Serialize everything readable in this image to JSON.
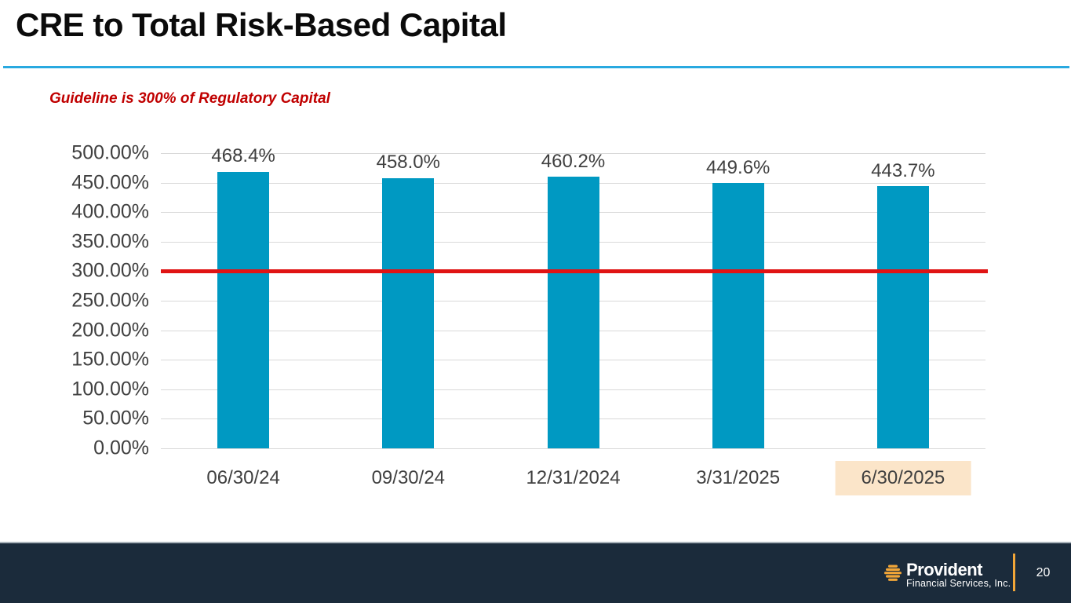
{
  "slide": {
    "title": "CRE to Total Risk-Based Capital",
    "guideline_note": "Guideline is 300% of Regulatory Capital"
  },
  "chart_data": {
    "type": "bar",
    "title": "CRE to Total Risk-Based Capital",
    "categories": [
      "06/30/24",
      "09/30/24",
      "12/31/2024",
      "3/31/2025",
      "6/30/2025"
    ],
    "values": [
      468.4,
      458.0,
      460.2,
      449.6,
      443.7
    ],
    "value_labels": [
      "468.4%",
      "458.0%",
      "460.2%",
      "449.6%",
      "443.7%"
    ],
    "ylim": [
      0,
      500
    ],
    "ytick_labels_top_down": [
      "500.00%",
      "450.00%",
      "400.00%",
      "350.00%",
      "300.00%",
      "250.00%",
      "200.00%",
      "150.00%",
      "100.00%",
      "50.00%",
      "0.00%"
    ],
    "guideline_value": 300,
    "guideline_label": "Guideline is 300% of Regulatory Capital",
    "highlighted_category_index": 4,
    "grid": true,
    "legend_position": "none",
    "bar_color": "#0099C2",
    "guideline_color": "#E01414",
    "highlight_color": "#FBE5C9"
  },
  "footer": {
    "logo_name": "Provident",
    "logo_subtitle": "Financial Services, Inc.",
    "page_number": "20",
    "background_color": "#1B2B3B",
    "accent_color": "#F2A638"
  },
  "colors": {
    "title_rule": "#29A9E0",
    "note_red": "#C00000",
    "axis_text": "#404040",
    "gridline": "#D9D9D9"
  }
}
